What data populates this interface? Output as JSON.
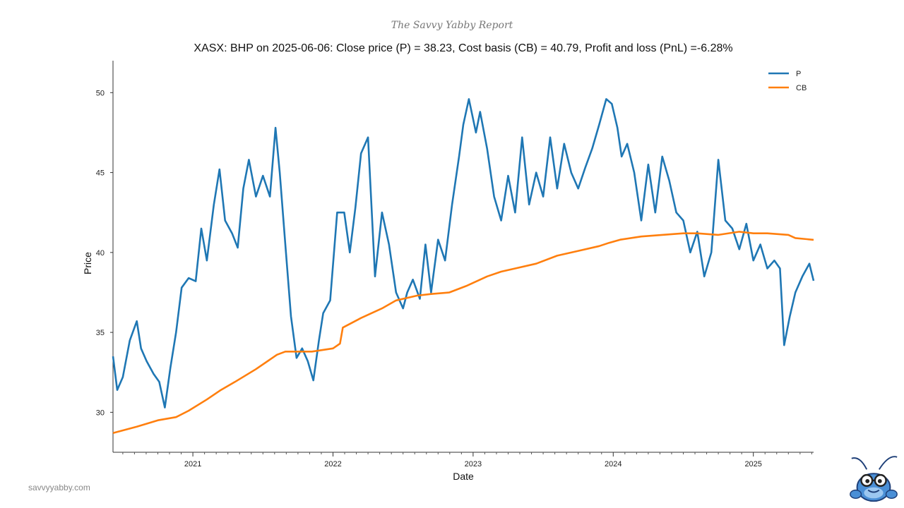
{
  "header": {
    "brand": "The Savvy Yabby Report",
    "website": "savvyyabby.com"
  },
  "colors": {
    "price": "#1f77b4",
    "cost_basis": "#ff7f0e"
  },
  "chart_data": {
    "type": "line",
    "title": "XASX: BHP on 2025-06-06: Close price (P) = 38.23, Cost basis (CB) = 40.79, Profit and loss (PnL) =-6.28%",
    "xlabel": "Date",
    "ylabel": "Price",
    "xlim": [
      2020.43,
      2025.43
    ],
    "ylim": [
      27.5,
      52.0
    ],
    "yticks": [
      30,
      35,
      40,
      45,
      50
    ],
    "xticks": [
      {
        "label": "2021",
        "value": 2021.0
      },
      {
        "label": "2022",
        "value": 2022.0
      },
      {
        "label": "2023",
        "value": 2023.0
      },
      {
        "label": "2024",
        "value": 2024.0
      },
      {
        "label": "2025",
        "value": 2025.0
      }
    ],
    "legend_position": "top-right",
    "series": [
      {
        "name": "P",
        "x": [
          2020.43,
          2020.46,
          2020.5,
          2020.55,
          2020.6,
          2020.63,
          2020.67,
          2020.72,
          2020.76,
          2020.8,
          2020.84,
          2020.88,
          2020.92,
          2020.97,
          2021.02,
          2021.06,
          2021.1,
          2021.15,
          2021.19,
          2021.23,
          2021.28,
          2021.32,
          2021.36,
          2021.4,
          2021.45,
          2021.5,
          2021.55,
          2021.59,
          2021.62,
          2021.66,
          2021.7,
          2021.74,
          2021.78,
          2021.82,
          2021.86,
          2021.9,
          2021.93,
          2021.98,
          2022.03,
          2022.08,
          2022.12,
          2022.16,
          2022.2,
          2022.25,
          2022.3,
          2022.35,
          2022.4,
          2022.45,
          2022.5,
          2022.53,
          2022.57,
          2022.62,
          2022.66,
          2022.7,
          2022.75,
          2022.8,
          2022.85,
          2022.9,
          2022.93,
          2022.97,
          2023.02,
          2023.05,
          2023.1,
          2023.15,
          2023.2,
          2023.25,
          2023.3,
          2023.35,
          2023.4,
          2023.45,
          2023.5,
          2023.55,
          2023.6,
          2023.65,
          2023.7,
          2023.75,
          2023.8,
          2023.85,
          2023.9,
          2023.95,
          2023.99,
          2024.03,
          2024.06,
          2024.1,
          2024.15,
          2024.2,
          2024.25,
          2024.3,
          2024.35,
          2024.4,
          2024.45,
          2024.5,
          2024.55,
          2024.6,
          2024.65,
          2024.7,
          2024.75,
          2024.8,
          2024.85,
          2024.9,
          2024.95,
          2025.0,
          2025.05,
          2025.1,
          2025.15,
          2025.19,
          2025.22,
          2025.26,
          2025.3,
          2025.35,
          2025.4,
          2025.43
        ],
        "values": [
          33.5,
          31.4,
          32.2,
          34.5,
          35.7,
          34.0,
          33.2,
          32.4,
          31.9,
          30.3,
          32.8,
          35.0,
          37.8,
          38.4,
          38.2,
          41.5,
          39.5,
          43.0,
          45.2,
          42.0,
          41.2,
          40.3,
          44.0,
          45.8,
          43.5,
          44.8,
          43.5,
          47.8,
          45.0,
          40.5,
          36.0,
          33.4,
          34.0,
          33.2,
          32.0,
          34.5,
          36.2,
          37.0,
          42.5,
          42.5,
          40.0,
          42.8,
          46.2,
          47.2,
          38.5,
          42.5,
          40.5,
          37.5,
          36.5,
          37.5,
          38.3,
          37.1,
          40.5,
          37.5,
          40.8,
          39.5,
          43.0,
          46.0,
          48.0,
          49.6,
          47.5,
          48.8,
          46.5,
          43.5,
          42.0,
          44.8,
          42.5,
          47.2,
          43.0,
          45.0,
          43.5,
          47.2,
          44.0,
          46.8,
          45.0,
          44.0,
          45.3,
          46.5,
          48.0,
          49.6,
          49.3,
          47.8,
          46.0,
          46.8,
          45.0,
          42.0,
          45.5,
          42.5,
          46.0,
          44.5,
          42.5,
          42.0,
          40.0,
          41.3,
          38.5,
          40.0,
          45.8,
          42.0,
          41.5,
          40.2,
          41.8,
          39.5,
          40.5,
          39.0,
          39.5,
          39.0,
          34.2,
          36.0,
          37.5,
          38.5,
          39.3,
          38.23
        ]
      },
      {
        "name": "CB",
        "x": [
          2020.43,
          2020.6,
          2020.75,
          2020.88,
          2020.97,
          2021.1,
          2021.2,
          2021.3,
          2021.45,
          2021.6,
          2021.66,
          2021.72,
          2021.85,
          2022.0,
          2022.05,
          2022.07,
          2022.2,
          2022.35,
          2022.45,
          2022.6,
          2022.7,
          2022.83,
          2022.95,
          2023.1,
          2023.2,
          2023.3,
          2023.45,
          2023.6,
          2023.75,
          2023.9,
          2023.97,
          2024.05,
          2024.2,
          2024.35,
          2024.5,
          2024.6,
          2024.75,
          2024.9,
          2025.0,
          2025.1,
          2025.25,
          2025.3,
          2025.43
        ],
        "values": [
          28.7,
          29.1,
          29.5,
          29.7,
          30.1,
          30.8,
          31.4,
          31.9,
          32.7,
          33.6,
          33.8,
          33.8,
          33.8,
          34.0,
          34.3,
          35.3,
          35.9,
          36.5,
          37.0,
          37.3,
          37.4,
          37.5,
          37.9,
          38.5,
          38.8,
          39.0,
          39.3,
          39.8,
          40.1,
          40.4,
          40.6,
          40.8,
          41.0,
          41.1,
          41.2,
          41.2,
          41.1,
          41.3,
          41.2,
          41.2,
          41.1,
          40.9,
          40.79
        ]
      }
    ]
  }
}
